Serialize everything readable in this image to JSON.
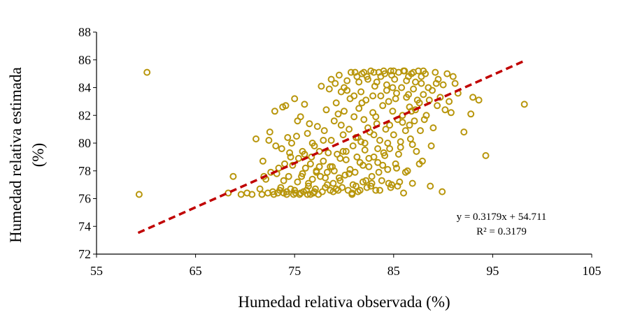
{
  "chart_data": {
    "type": "scatter",
    "xlabel": "Humedad relativa observada (%)",
    "ylabel_line1": "Humedad relativa estimada",
    "ylabel_line2": "(%)",
    "xlim": [
      55,
      105
    ],
    "ylim": [
      72,
      88
    ],
    "xticks": [
      55,
      65,
      75,
      85,
      95,
      105
    ],
    "yticks": [
      72,
      74,
      76,
      78,
      80,
      82,
      84,
      86,
      88
    ],
    "grid": false,
    "legend": "none",
    "marker_color": "#B8960C",
    "trend_color": "#C00000",
    "trendline": {
      "slope": 0.3179,
      "intercept": 54.711,
      "x_range": [
        59.2,
        98.2
      ]
    },
    "equation_text": "y = 0.3179x + 54.711",
    "r2_text": "R² = 0.3179",
    "series": [
      {
        "name": "Humedad relativa",
        "points": [
          [
            59.3,
            76.3
          ],
          [
            60.1,
            85.1
          ],
          [
            68.3,
            76.4
          ],
          [
            68.8,
            77.6
          ],
          [
            69.6,
            76.3
          ],
          [
            70.2,
            76.4
          ],
          [
            70.7,
            76.3
          ],
          [
            71.1,
            80.3
          ],
          [
            71.5,
            76.7
          ],
          [
            71.7,
            76.3
          ],
          [
            71.8,
            78.7
          ],
          [
            72.1,
            77.4
          ],
          [
            72.3,
            76.4
          ],
          [
            72.4,
            80.2
          ],
          [
            72.5,
            80.8
          ],
          [
            72.8,
            76.5
          ],
          [
            73.0,
            82.3
          ],
          [
            73.2,
            77.8
          ],
          [
            73.3,
            76.4
          ],
          [
            73.4,
            78.2
          ],
          [
            73.6,
            76.8
          ],
          [
            73.7,
            79.6
          ],
          [
            73.8,
            82.6
          ],
          [
            73.9,
            76.4
          ],
          [
            74.0,
            78.5
          ],
          [
            74.1,
            82.7
          ],
          [
            74.2,
            76.3
          ],
          [
            74.3,
            80.4
          ],
          [
            74.4,
            77.6
          ],
          [
            74.5,
            79.3
          ],
          [
            74.6,
            76.7
          ],
          [
            74.7,
            80.0
          ],
          [
            74.8,
            78.4
          ],
          [
            74.9,
            76.3
          ],
          [
            75.0,
            83.2
          ],
          [
            75.1,
            76.4
          ],
          [
            75.2,
            80.5
          ],
          [
            75.3,
            77.2
          ],
          [
            75.4,
            78.9
          ],
          [
            75.5,
            76.3
          ],
          [
            75.6,
            81.9
          ],
          [
            75.7,
            77.6
          ],
          [
            75.8,
            79.4
          ],
          [
            75.9,
            76.5
          ],
          [
            76.0,
            82.8
          ],
          [
            76.1,
            78.2
          ],
          [
            76.2,
            76.6
          ],
          [
            76.3,
            80.7
          ],
          [
            76.4,
            77.1
          ],
          [
            76.5,
            81.4
          ],
          [
            76.6,
            76.3
          ],
          [
            76.7,
            79.0
          ],
          [
            76.8,
            77.4
          ],
          [
            76.9,
            76.4
          ],
          [
            77.0,
            79.8
          ],
          [
            77.1,
            76.7
          ],
          [
            77.2,
            78.0
          ],
          [
            77.3,
            81.2
          ],
          [
            77.4,
            76.3
          ],
          [
            77.5,
            79.4
          ],
          [
            77.6,
            77.6
          ],
          [
            77.7,
            84.1
          ],
          [
            77.8,
            76.5
          ],
          [
            77.9,
            78.7
          ],
          [
            78.0,
            80.9
          ],
          [
            78.1,
            76.8
          ],
          [
            78.2,
            82.4
          ],
          [
            78.3,
            77.9
          ],
          [
            78.4,
            79.3
          ],
          [
            78.5,
            83.9
          ],
          [
            78.6,
            76.6
          ],
          [
            78.7,
            80.2
          ],
          [
            78.8,
            78.3
          ],
          [
            78.9,
            77.1
          ],
          [
            79.0,
            81.6
          ],
          [
            79.1,
            84.3
          ],
          [
            79.2,
            76.7
          ],
          [
            79.3,
            79.2
          ],
          [
            79.4,
            82.1
          ],
          [
            79.5,
            77.5
          ],
          [
            79.6,
            78.9
          ],
          [
            79.7,
            83.7
          ],
          [
            79.8,
            76.8
          ],
          [
            79.9,
            80.6
          ],
          [
            80.0,
            82.3
          ],
          [
            80.1,
            77.7
          ],
          [
            80.2,
            79.4
          ],
          [
            80.3,
            84.5
          ],
          [
            80.4,
            76.6
          ],
          [
            80.5,
            81.0
          ],
          [
            80.6,
            78.1
          ],
          [
            80.7,
            85.1
          ],
          [
            80.8,
            76.3
          ],
          [
            80.9,
            79.8
          ],
          [
            81.0,
            83.4
          ],
          [
            81.1,
            77.9
          ],
          [
            81.2,
            80.4
          ],
          [
            81.3,
            84.8
          ],
          [
            81.4,
            76.5
          ],
          [
            81.5,
            82.5
          ],
          [
            81.6,
            78.6
          ],
          [
            81.7,
            80.1
          ],
          [
            81.8,
            85.0
          ],
          [
            81.9,
            77.2
          ],
          [
            82.0,
            81.7
          ],
          [
            82.1,
            79.5
          ],
          [
            82.2,
            83.1
          ],
          [
            82.3,
            76.8
          ],
          [
            82.4,
            84.6
          ],
          [
            82.5,
            78.3
          ],
          [
            82.6,
            80.8
          ],
          [
            82.7,
            85.2
          ],
          [
            82.8,
            77.1
          ],
          [
            82.9,
            82.2
          ],
          [
            83.0,
            79.0
          ],
          [
            83.1,
            84.1
          ],
          [
            83.2,
            76.6
          ],
          [
            83.3,
            81.4
          ],
          [
            83.4,
            78.6
          ],
          [
            83.5,
            85.1
          ],
          [
            83.6,
            80.2
          ],
          [
            83.7,
            83.4
          ],
          [
            83.8,
            77.3
          ],
          [
            83.9,
            82.7
          ],
          [
            84.0,
            79.3
          ],
          [
            84.1,
            85.0
          ],
          [
            84.2,
            81.0
          ],
          [
            84.3,
            84.2
          ],
          [
            84.4,
            78.1
          ],
          [
            84.5,
            83.0
          ],
          [
            84.6,
            79.6
          ],
          [
            84.7,
            85.2
          ],
          [
            84.8,
            77.0
          ],
          [
            84.9,
            82.3
          ],
          [
            85.0,
            80.6
          ],
          [
            85.1,
            84.6
          ],
          [
            85.2,
            78.5
          ],
          [
            85.3,
            83.6
          ],
          [
            85.4,
            81.7
          ],
          [
            85.5,
            85.1
          ],
          [
            85.6,
            77.2
          ],
          [
            85.7,
            79.7
          ],
          [
            85.8,
            84.0
          ],
          [
            85.9,
            82.0
          ],
          [
            86.0,
            76.4
          ],
          [
            86.1,
            85.2
          ],
          [
            86.2,
            80.9
          ],
          [
            86.3,
            83.3
          ],
          [
            86.4,
            78.0
          ],
          [
            86.5,
            84.8
          ],
          [
            86.6,
            82.6
          ],
          [
            86.7,
            80.3
          ],
          [
            86.8,
            85.0
          ],
          [
            86.9,
            77.1
          ],
          [
            87.0,
            83.9
          ],
          [
            87.1,
            81.6
          ],
          [
            87.2,
            84.4
          ],
          [
            87.3,
            79.4
          ],
          [
            87.5,
            85.2
          ],
          [
            87.6,
            82.9
          ],
          [
            87.7,
            80.9
          ],
          [
            87.8,
            84.3
          ],
          [
            87.9,
            78.7
          ],
          [
            88.0,
            83.5
          ],
          [
            88.2,
            85.0
          ],
          [
            88.3,
            82.0
          ],
          [
            88.5,
            84.0
          ],
          [
            88.7,
            76.9
          ],
          [
            88.8,
            79.8
          ],
          [
            88.9,
            83.8
          ],
          [
            89.0,
            81.1
          ],
          [
            89.2,
            85.1
          ],
          [
            89.4,
            82.7
          ],
          [
            89.5,
            84.6
          ],
          [
            89.7,
            83.3
          ],
          [
            89.9,
            76.5
          ],
          [
            90.0,
            84.2
          ],
          [
            90.2,
            82.4
          ],
          [
            90.4,
            85.0
          ],
          [
            90.6,
            83.0
          ],
          [
            90.8,
            82.2
          ],
          [
            91.0,
            84.8
          ],
          [
            91.2,
            84.3
          ],
          [
            91.5,
            83.6
          ],
          [
            92.1,
            80.8
          ],
          [
            92.8,
            82.1
          ],
          [
            93.0,
            83.3
          ],
          [
            93.6,
            83.1
          ],
          [
            94.3,
            79.1
          ],
          [
            98.2,
            82.8
          ],
          [
            74.2,
            76.5
          ],
          [
            75.6,
            76.4
          ],
          [
            76.3,
            76.3
          ],
          [
            77.0,
            76.5
          ],
          [
            78.9,
            76.5
          ],
          [
            79.4,
            76.6
          ],
          [
            80.8,
            76.4
          ],
          [
            81.6,
            76.6
          ],
          [
            82.7,
            76.9
          ],
          [
            83.6,
            76.6
          ],
          [
            84.5,
            77.1
          ],
          [
            85.4,
            76.9
          ],
          [
            80.2,
            78.8
          ],
          [
            81.3,
            79.0
          ],
          [
            82.5,
            78.9
          ],
          [
            83.4,
            79.6
          ],
          [
            84.1,
            79.1
          ],
          [
            85.5,
            79.2
          ],
          [
            79.0,
            78.0
          ],
          [
            80.5,
            77.8
          ],
          [
            81.9,
            78.4
          ],
          [
            82.8,
            77.6
          ],
          [
            83.9,
            78.4
          ],
          [
            79.7,
            81.3
          ],
          [
            81.0,
            81.9
          ],
          [
            82.4,
            81.1
          ],
          [
            83.2,
            81.9
          ],
          [
            84.6,
            81.3
          ],
          [
            85.9,
            81.5
          ],
          [
            86.8,
            82.3
          ],
          [
            79.2,
            82.9
          ],
          [
            80.6,
            83.2
          ],
          [
            81.7,
            83.7
          ],
          [
            82.9,
            83.4
          ],
          [
            84.3,
            83.8
          ],
          [
            85.2,
            83.2
          ],
          [
            86.5,
            83.5
          ],
          [
            87.4,
            83.1
          ],
          [
            80.0,
            84.0
          ],
          [
            81.5,
            84.4
          ],
          [
            82.3,
            84.8
          ],
          [
            83.7,
            84.8
          ],
          [
            84.8,
            84.9
          ],
          [
            86.3,
            84.5
          ],
          [
            87.8,
            84.8
          ],
          [
            81.1,
            85.1
          ],
          [
            82.0,
            85.1
          ],
          [
            83.0,
            85.1
          ],
          [
            84.0,
            85.2
          ],
          [
            85.0,
            85.2
          ],
          [
            86.0,
            85.2
          ],
          [
            87.0,
            85.1
          ],
          [
            88.0,
            85.2
          ],
          [
            78.3,
            77.0
          ],
          [
            77.5,
            78.3
          ],
          [
            76.8,
            80.0
          ],
          [
            76.0,
            79.2
          ],
          [
            75.3,
            81.6
          ],
          [
            74.6,
            79.0
          ],
          [
            73.9,
            77.3
          ],
          [
            73.1,
            79.8
          ],
          [
            72.6,
            77.9
          ],
          [
            71.9,
            77.6
          ],
          [
            75.8,
            77.8
          ],
          [
            77.2,
            77.9
          ],
          [
            78.6,
            78.3
          ],
          [
            79.9,
            79.4
          ],
          [
            81.4,
            80.4
          ],
          [
            82.1,
            80.0
          ],
          [
            83.0,
            80.6
          ],
          [
            84.4,
            80.0
          ],
          [
            85.7,
            80.1
          ],
          [
            86.6,
            81.3
          ],
          [
            87.2,
            82.4
          ],
          [
            88.1,
            81.7
          ],
          [
            88.6,
            83.1
          ],
          [
            89.3,
            84.3
          ],
          [
            84.9,
            84.0
          ],
          [
            83.3,
            84.4
          ],
          [
            81.8,
            82.9
          ],
          [
            80.3,
            83.8
          ],
          [
            79.5,
            84.9
          ],
          [
            78.7,
            84.6
          ],
          [
            77.9,
            80.2
          ],
          [
            76.6,
            78.5
          ],
          [
            78.1,
            77.5
          ],
          [
            79.6,
            77.3
          ],
          [
            80.9,
            77.0
          ],
          [
            82.2,
            77.3
          ],
          [
            83.5,
            77.9
          ],
          [
            84.7,
            76.8
          ],
          [
            86.2,
            77.9
          ],
          [
            85.3,
            78.2
          ],
          [
            86.9,
            79.9
          ],
          [
            87.6,
            78.5
          ],
          [
            76.4,
            76.9
          ],
          [
            75.0,
            76.6
          ],
          [
            73.5,
            76.6
          ],
          [
            72.9,
            76.3
          ],
          [
            81.2,
            76.9
          ]
        ]
      }
    ]
  }
}
